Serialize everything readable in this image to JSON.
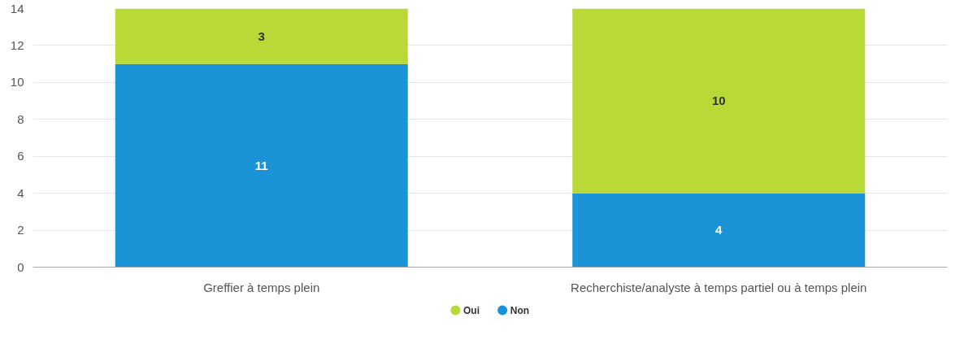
{
  "chart_data": {
    "type": "bar",
    "stacked": true,
    "categories": [
      "Greffier à temps plein",
      "Recherchiste/analyste à temps partiel ou à temps plein"
    ],
    "series": [
      {
        "name": "Non",
        "color": "#1a94d6",
        "values": [
          11,
          4
        ]
      },
      {
        "name": "Oui",
        "color": "#b8d936",
        "values": [
          3,
          10
        ]
      }
    ],
    "ylim": [
      0,
      14
    ],
    "yticks": [
      0,
      2,
      4,
      6,
      8,
      10,
      12,
      14
    ],
    "grid": "y",
    "legend": "bottom",
    "data_labels": true
  }
}
